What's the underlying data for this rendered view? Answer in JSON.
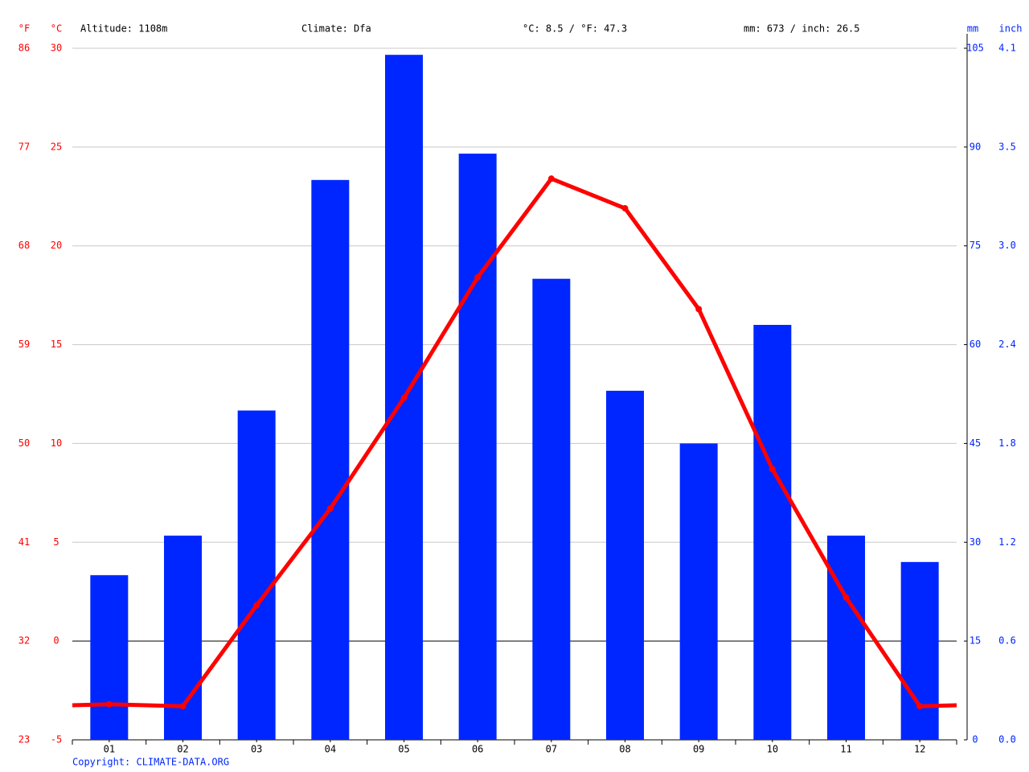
{
  "chart_data": {
    "type": "combo",
    "header": [
      "Altitude: 1108m",
      "Climate: Dfa",
      "°C: 8.5 / °F: 47.3",
      "mm: 673 / inch: 26.5"
    ],
    "footer": "Copyright: CLIMATE-DATA.ORG",
    "y_unit_f": "°F",
    "y_unit": "°C",
    "y2_unit": "mm",
    "y2_unit_inch": "inch",
    "categories": [
      "01",
      "02",
      "03",
      "04",
      "05",
      "06",
      "07",
      "08",
      "09",
      "10",
      "11",
      "12"
    ],
    "ylim": [
      -5,
      30
    ],
    "yticks": [
      30,
      25,
      20,
      15,
      10,
      5,
      0,
      -5
    ],
    "yticks_f": [
      {
        "value": 30,
        "label": "86"
      },
      {
        "value": 25,
        "label": "77"
      },
      {
        "value": 20,
        "label": "68"
      },
      {
        "value": 15,
        "label": "59"
      },
      {
        "value": 10,
        "label": "50"
      },
      {
        "value": 5,
        "label": "41"
      },
      {
        "value": 0,
        "label": "32"
      },
      {
        "value": -5,
        "label": "23"
      }
    ],
    "y2lim": [
      0,
      105
    ],
    "y2ticks": [
      105,
      90,
      75,
      60,
      45,
      30,
      15,
      0
    ],
    "y2ticks_inch": [
      {
        "value": 105,
        "label": "4.1"
      },
      {
        "value": 90,
        "label": "3.5"
      },
      {
        "value": 75,
        "label": "3.0"
      },
      {
        "value": 60,
        "label": "2.4"
      },
      {
        "value": 45,
        "label": "1.8"
      },
      {
        "value": 30,
        "label": "1.2"
      },
      {
        "value": 15,
        "label": "0.6"
      },
      {
        "value": 0,
        "label": "0.0"
      }
    ],
    "grid": true,
    "series": [
      {
        "type": "bar",
        "axis": "y2",
        "color": "#0026ff",
        "values": [
          25,
          31,
          50,
          85,
          104,
          89,
          70,
          53,
          45,
          63,
          31,
          27
        ]
      },
      {
        "type": "line",
        "color": "#ff0000",
        "values": [
          -3.2,
          -3.3,
          1.8,
          6.7,
          12.3,
          18.4,
          23.4,
          21.9,
          16.8,
          8.7,
          2.2,
          -3.3
        ]
      }
    ]
  }
}
